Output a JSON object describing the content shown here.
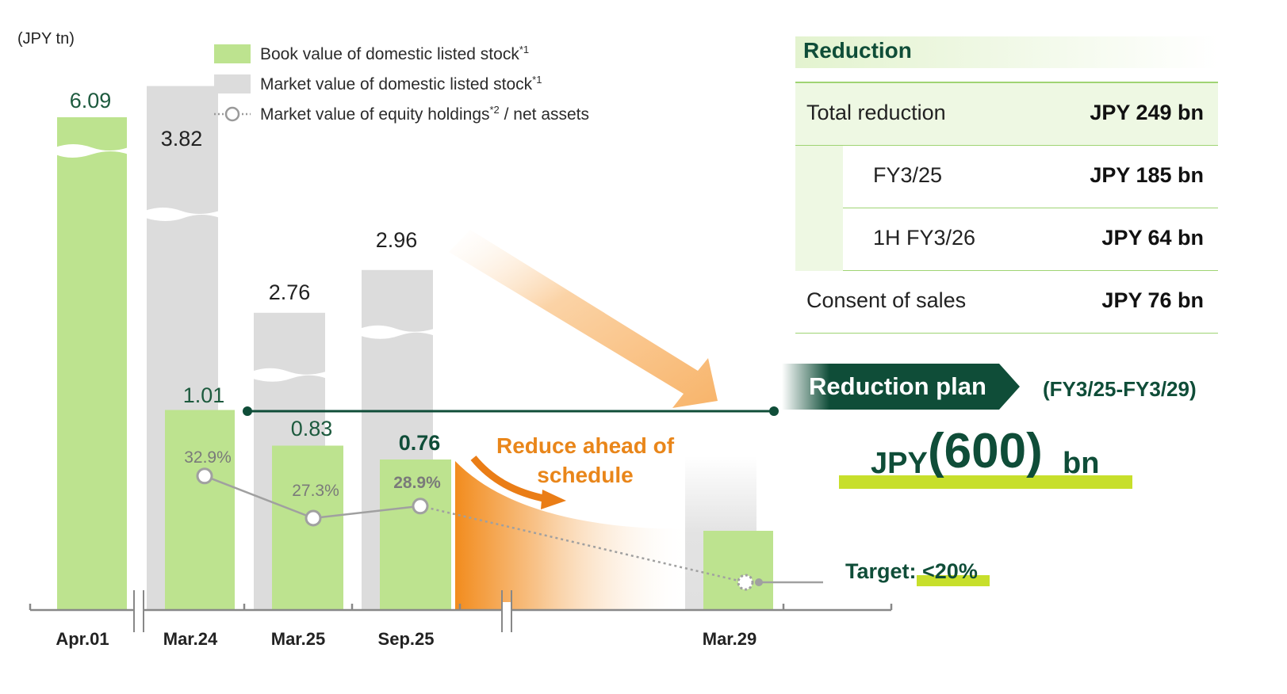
{
  "chart_data": {
    "type": "bar",
    "unit_label": "(JPY tn)",
    "categories": [
      "Apr.01",
      "Mar.24",
      "Mar.25",
      "Sep.25",
      "Mar.29"
    ],
    "series": [
      {
        "name": "Market value of domestic listed stock*1",
        "values": [
          null,
          3.82,
          2.76,
          2.96,
          null
        ]
      },
      {
        "name": "Book value of domestic listed stock*1",
        "values": [
          6.09,
          1.01,
          0.83,
          0.76,
          null
        ]
      },
      {
        "name": "Market value of equity holdings*2 / net assets",
        "values": [
          null,
          32.9,
          27.3,
          28.9,
          20.0
        ]
      }
    ],
    "book_labels": [
      "6.09",
      "1.01",
      "0.83",
      "0.76",
      ""
    ],
    "market_labels": [
      "",
      "3.82",
      "2.76",
      "2.96",
      ""
    ],
    "ratio_labels": [
      "",
      "32.9%",
      "27.3%",
      "28.9%",
      ""
    ],
    "axis_breaks": true
  },
  "legend": {
    "book": {
      "text": "Book value of domestic listed stock",
      "sup": "*1"
    },
    "market": {
      "text": "Market value of domestic listed stock",
      "sup": "*1"
    },
    "ratio": {
      "text_a": "Market value of equity holdings",
      "sup": "*2",
      "text_b": " / net assets"
    }
  },
  "reduction": {
    "title": "Reduction",
    "rows": [
      {
        "label": "Total reduction",
        "value": "JPY 249 bn"
      },
      {
        "label": "FY3/25",
        "value": "JPY 185 bn"
      },
      {
        "label": "1H FY3/26",
        "value": "JPY 64 bn"
      },
      {
        "label": "Consent of sales",
        "value": "JPY 76 bn"
      }
    ]
  },
  "plan": {
    "title": "Reduction plan",
    "period": "(FY3/25-FY3/29)",
    "currency": "JPY",
    "amount": "(600)",
    "unit": "bn"
  },
  "annotations": {
    "reduce_ahead": "Reduce ahead of schedule",
    "target_prefix": "Target: ",
    "target_value": "<20%"
  },
  "colors": {
    "book": "#bde38f",
    "market": "#dcdcdc",
    "dark_green": "#0f4d38",
    "orange": "#f0962a",
    "highlight": "#c7df2b"
  }
}
